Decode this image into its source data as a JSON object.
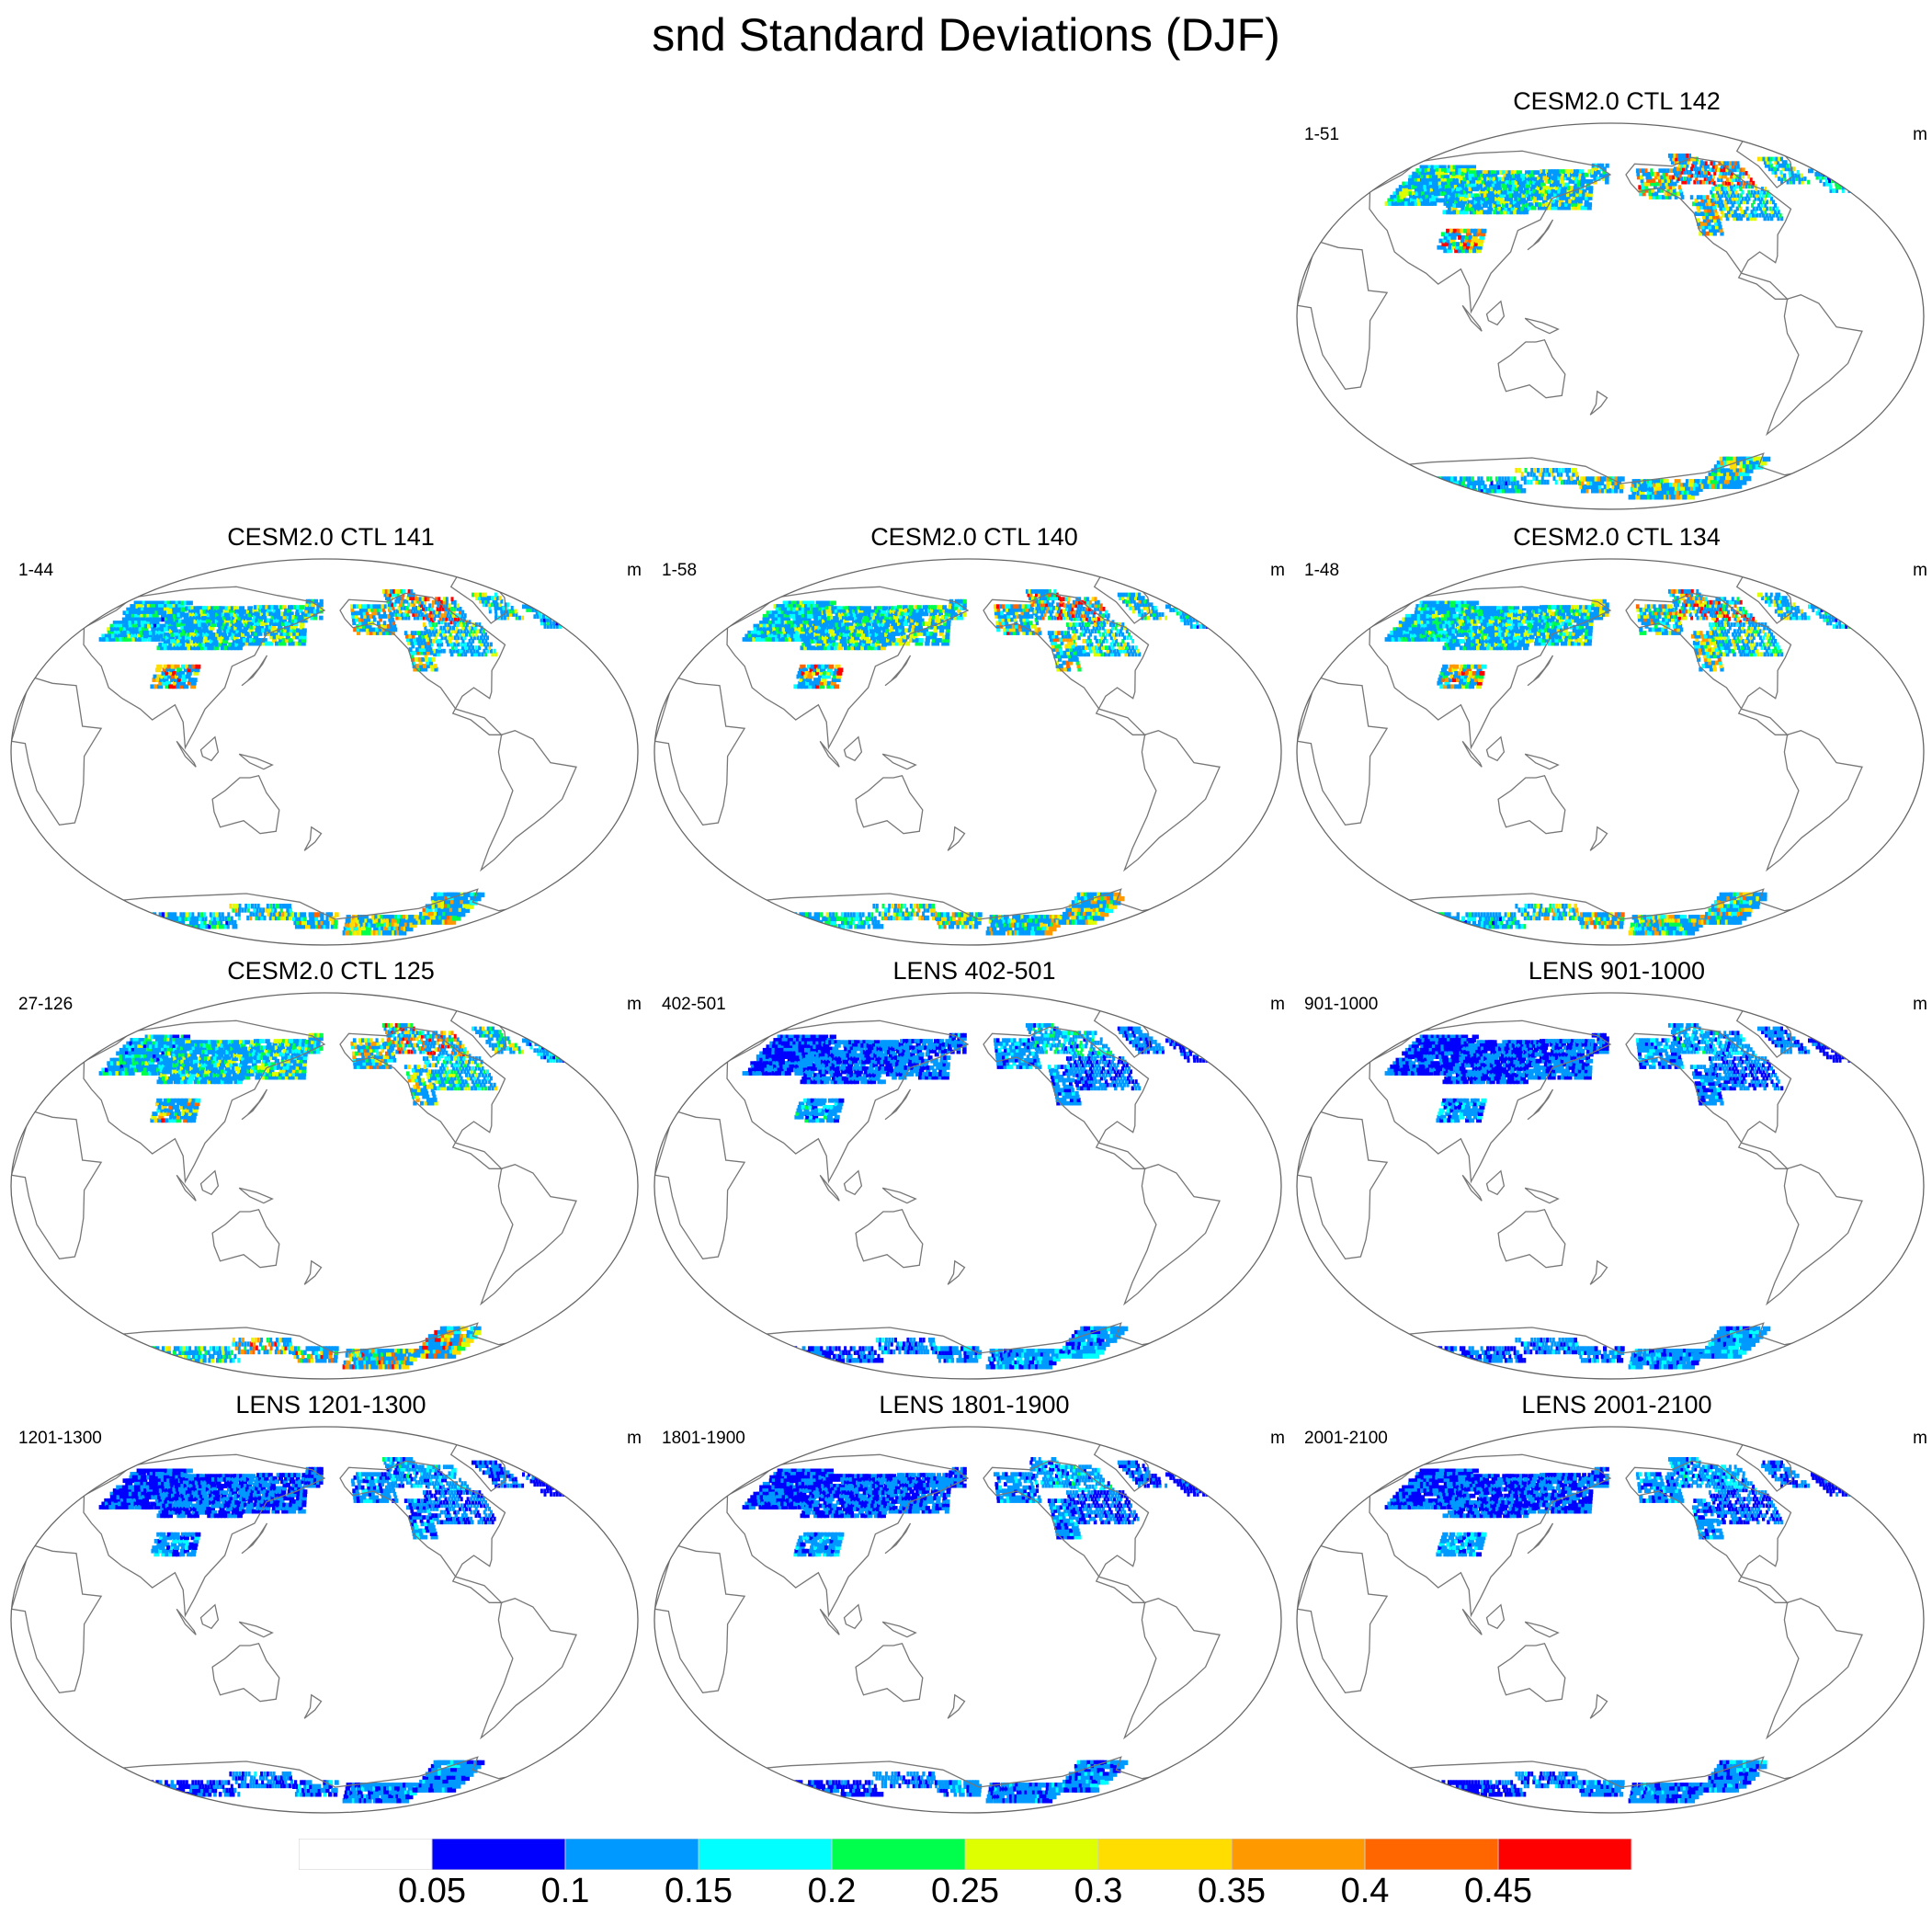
{
  "title": "snd Standard Deviations (DJF)",
  "panels": [
    {
      "title": "CESM2.0 CTL 142",
      "left": "1-51",
      "right": "m",
      "intensity": 1.0,
      "antarctic": 0.75
    },
    {
      "title": "CESM2.0 CTL 141",
      "left": "1-44",
      "right": "m",
      "intensity": 0.95,
      "antarctic": 0.8
    },
    {
      "title": "CESM2.0 CTL 140",
      "left": "1-58",
      "right": "m",
      "intensity": 1.0,
      "antarctic": 0.8
    },
    {
      "title": "CESM2.0 CTL 134",
      "left": "1-48",
      "right": "m",
      "intensity": 0.95,
      "antarctic": 0.8
    },
    {
      "title": "CESM2.0 CTL 125",
      "left": "27-126",
      "right": "m",
      "intensity": 0.9,
      "antarctic": 1.0
    },
    {
      "title": "LENS 402-501",
      "left": "402-501",
      "right": "m",
      "intensity": 0.35,
      "antarctic": 0.3
    },
    {
      "title": "LENS 901-1000",
      "left": "901-1000",
      "right": "m",
      "intensity": 0.3,
      "antarctic": 0.3
    },
    {
      "title": "LENS 1201-1300",
      "left": "1201-1300",
      "right": "m",
      "intensity": 0.3,
      "antarctic": 0.25
    },
    {
      "title": "LENS 1801-1900",
      "left": "1801-1900",
      "right": "m",
      "intensity": 0.3,
      "antarctic": 0.25
    },
    {
      "title": "LENS 2001-2100",
      "left": "2001-2100",
      "right": "m",
      "intensity": 0.3,
      "antarctic": 0.25
    }
  ],
  "colorbar": {
    "colors": [
      "#ffffff",
      "#0000ff",
      "#0099ff",
      "#00ffff",
      "#00ff4c",
      "#ddff00",
      "#ffdd00",
      "#ff9900",
      "#ff6600",
      "#ff0000"
    ],
    "labels": [
      "0.05",
      "0.1",
      "0.15",
      "0.2",
      "0.25",
      "0.3",
      "0.35",
      "0.4",
      "0.45"
    ]
  }
}
